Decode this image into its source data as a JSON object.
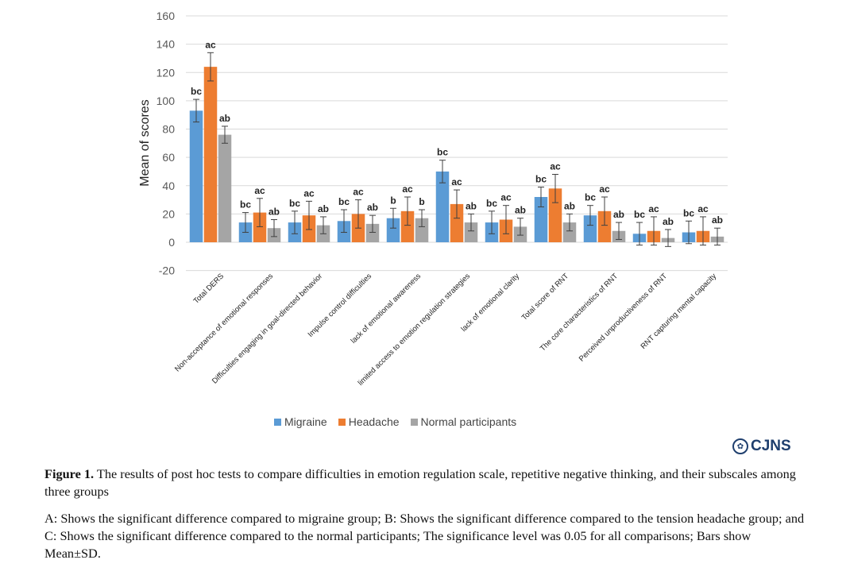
{
  "chart_data": {
    "type": "bar",
    "ylabel": "Mean of scores",
    "ylim": [
      -20,
      160
    ],
    "yticks": [
      -20,
      0,
      20,
      40,
      60,
      80,
      100,
      120,
      140,
      160
    ],
    "grid": true,
    "legend_position": "bottom",
    "categories": [
      "Total DERS",
      "Non-acceptance of emotional responses",
      "Difficulties engaging in goal-directed behavior",
      "Impulse control difficulties",
      "lack of emotional awareness",
      "limited access to emotion regulation strategies",
      "lack of emotional clarity",
      "Total score of RNT",
      "The core characteristics of RNT",
      "Perceived unproductiveness of RNT",
      "RNT capturing mental capacity"
    ],
    "series": [
      {
        "name": "Migraine",
        "color": "#5b9bd5",
        "values": [
          93,
          14,
          14,
          15,
          17,
          50,
          14,
          32,
          19,
          6,
          7
        ],
        "errors": [
          8,
          7,
          8,
          8,
          7,
          8,
          8,
          7,
          7,
          8,
          8
        ],
        "labels": [
          "bc",
          "bc",
          "bc",
          "bc",
          "b",
          "bc",
          "bc",
          "bc",
          "bc",
          "bc",
          "bc"
        ]
      },
      {
        "name": "Headache",
        "color": "#ed7d31",
        "values": [
          124,
          21,
          19,
          20,
          22,
          27,
          16,
          38,
          22,
          8,
          8
        ],
        "errors": [
          10,
          10,
          10,
          10,
          10,
          10,
          10,
          10,
          10,
          10,
          10
        ],
        "labels": [
          "ac",
          "ac",
          "ac",
          "ac",
          "ac",
          "ac",
          "ac",
          "ac",
          "ac",
          "ac",
          "ac"
        ]
      },
      {
        "name": "Normal participants",
        "color": "#a5a5a5",
        "values": [
          76,
          10,
          12,
          13,
          17,
          14,
          11,
          14,
          8,
          3,
          4
        ],
        "errors": [
          6,
          6,
          6,
          6,
          6,
          6,
          6,
          6,
          6,
          6,
          6
        ],
        "labels": [
          "ab",
          "ab",
          "ab",
          "ab",
          "b",
          "ab",
          "ab",
          "ab",
          "ab",
          "ab",
          "ab"
        ]
      }
    ]
  },
  "logo": {
    "text": "CJNS"
  },
  "caption": {
    "figure_label": "Figure 1.",
    "title_text": " The results of post hoc tests to compare difficulties in emotion regulation scale, repetitive negative thinking, and their subscales among three groups",
    "note": "A: Shows the significant difference compared to migraine group; B: Shows the significant difference compared to the tension headache group; and C: Shows the significant difference compared to the normal participants; The significance level was 0.05 for all comparisons; Bars show Mean±SD."
  }
}
